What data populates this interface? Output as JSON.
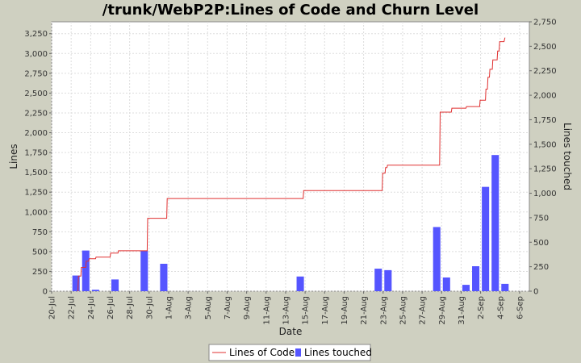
{
  "chart_data": {
    "type": "bar",
    "title": "/trunk/WebP2P:Lines of Code and Churn Level",
    "xlabel": "Date",
    "ylabel": "Lines",
    "y2label": "Lines touched",
    "x_ticks": [
      "20-Jul",
      "22-Jul",
      "24-Jul",
      "26-Jul",
      "28-Jul",
      "30-Jul",
      "1-Aug",
      "3-Aug",
      "5-Aug",
      "7-Aug",
      "9-Aug",
      "11-Aug",
      "13-Aug",
      "15-Aug",
      "17-Aug",
      "19-Aug",
      "21-Aug",
      "23-Aug",
      "25-Aug",
      "27-Aug",
      "29-Aug",
      "31-Aug",
      "2-Sep",
      "4-Sep",
      "6-Sep"
    ],
    "xlim_days": [
      0,
      49
    ],
    "ylim": [
      0,
      3400
    ],
    "y_ticks": [
      0,
      250,
      500,
      750,
      1000,
      1250,
      1500,
      1750,
      2000,
      2250,
      2500,
      2750,
      3000,
      3250
    ],
    "y_tick_labels": [
      "0",
      "250",
      "500",
      "750",
      "1,000",
      "1,250",
      "1,500",
      "1,750",
      "2,000",
      "2,250",
      "2,500",
      "2,750",
      "3,000",
      "3,250"
    ],
    "y2lim": [
      0,
      2750
    ],
    "y2_ticks": [
      0,
      250,
      500,
      750,
      1000,
      1250,
      1500,
      1750,
      2000,
      2250,
      2500,
      2750
    ],
    "y2_tick_labels": [
      "0",
      "250",
      "500",
      "750",
      "1,000",
      "1,250",
      "1,500",
      "1,750",
      "2,000",
      "2,250",
      "2,500",
      "2,750"
    ],
    "grid": true,
    "legend_position": "bottom",
    "series": [
      {
        "name": "Lines of Code",
        "type": "line",
        "axis": "left",
        "color": "#e03030",
        "points": [
          [
            2.7,
            0
          ],
          [
            2.75,
            190
          ],
          [
            3.0,
            190
          ],
          [
            3.05,
            300
          ],
          [
            3.5,
            300
          ],
          [
            3.55,
            380
          ],
          [
            3.8,
            380
          ],
          [
            3.85,
            410
          ],
          [
            4.5,
            410
          ],
          [
            4.55,
            430
          ],
          [
            6.0,
            430
          ],
          [
            6.05,
            480
          ],
          [
            6.8,
            480
          ],
          [
            6.85,
            510
          ],
          [
            9.8,
            510
          ],
          [
            9.85,
            920
          ],
          [
            11.8,
            920
          ],
          [
            11.85,
            1170
          ],
          [
            25.8,
            1170
          ],
          [
            25.85,
            1270
          ],
          [
            33.9,
            1270
          ],
          [
            33.95,
            1490
          ],
          [
            34.2,
            1490
          ],
          [
            34.25,
            1560
          ],
          [
            34.4,
            1560
          ],
          [
            34.45,
            1590
          ],
          [
            39.8,
            1590
          ],
          [
            39.85,
            2260
          ],
          [
            41.0,
            2260
          ],
          [
            41.05,
            2310
          ],
          [
            42.5,
            2310
          ],
          [
            42.55,
            2330
          ],
          [
            43.9,
            2330
          ],
          [
            43.95,
            2410
          ],
          [
            44.5,
            2410
          ],
          [
            44.55,
            2550
          ],
          [
            44.7,
            2550
          ],
          [
            44.75,
            2700
          ],
          [
            44.9,
            2700
          ],
          [
            44.95,
            2800
          ],
          [
            45.2,
            2800
          ],
          [
            45.25,
            2920
          ],
          [
            45.7,
            2920
          ],
          [
            45.75,
            3030
          ],
          [
            45.9,
            3030
          ],
          [
            45.95,
            3150
          ],
          [
            46.4,
            3150
          ],
          [
            46.5,
            3200
          ]
        ]
      },
      {
        "name": "Lines touched",
        "type": "bar",
        "axis": "right",
        "color": "#5555ff",
        "bar_width_days": 0.75,
        "points": [
          [
            2.5,
            160
          ],
          [
            3.5,
            415
          ],
          [
            4.5,
            15
          ],
          [
            6.5,
            120
          ],
          [
            9.5,
            415
          ],
          [
            11.5,
            280
          ],
          [
            25.5,
            150
          ],
          [
            33.5,
            230
          ],
          [
            34.5,
            215
          ],
          [
            39.5,
            655
          ],
          [
            40.5,
            140
          ],
          [
            42.5,
            65
          ],
          [
            43.5,
            255
          ],
          [
            44.5,
            1065
          ],
          [
            45.5,
            1390
          ],
          [
            46.5,
            75
          ]
        ]
      }
    ]
  }
}
